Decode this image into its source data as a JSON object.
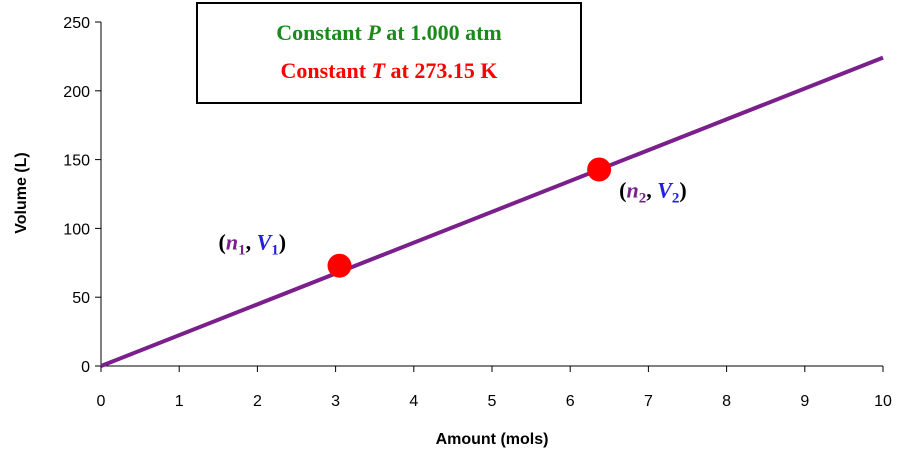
{
  "chart_data": {
    "type": "line",
    "xlabel": "Amount (mols)",
    "ylabel": "Volume (L)",
    "xlim": [
      0,
      10
    ],
    "ylim": [
      0,
      250
    ],
    "x_ticks": [
      "0",
      "1",
      "2",
      "3",
      "4",
      "5",
      "6",
      "7",
      "8",
      "9",
      "10"
    ],
    "y_ticks": [
      "0",
      "50",
      "100",
      "150",
      "200",
      "250"
    ],
    "grid": false,
    "series": [
      {
        "x": [
          0,
          10
        ],
        "y": [
          0,
          224.1
        ],
        "color": "#7a1f8c"
      }
    ],
    "points": [
      {
        "x": 3.05,
        "y": 72.9,
        "color": "#ff0000",
        "label": {
          "var_n": "n",
          "sub_n": "1",
          "var_v": "V",
          "sub_v": "1"
        }
      },
      {
        "x": 6.37,
        "y": 142.8,
        "color": "#ff0000",
        "label": {
          "var_n": "n",
          "sub_n": "2",
          "var_v": "V",
          "sub_v": "2"
        }
      }
    ],
    "annotation": {
      "line1": {
        "prefix": "Constant ",
        "var": "P",
        "suffix": " at 1.000 atm",
        "color": "#1a8a1a"
      },
      "line2": {
        "prefix": "Constant ",
        "var": "T",
        "suffix": " at 273.15 K",
        "color": "#ff0000"
      }
    },
    "label_colors": {
      "paren": "#000000",
      "n": "#7a1f8c",
      "v": "#2222dd"
    }
  }
}
